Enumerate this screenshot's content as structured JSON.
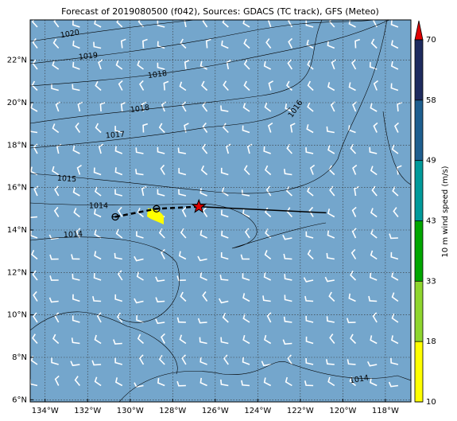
{
  "chart_data": {
    "type": "map",
    "title": "Forecast of 2019080500 (f042), Sources: GDACS (TC track), GFS (Meteo)",
    "xlim": [
      -134.7,
      -116.8
    ],
    "ylim": [
      5.9,
      23.9
    ],
    "grid": true,
    "xticks": [
      {
        "value": -134,
        "label": "134°W"
      },
      {
        "value": -132,
        "label": "132°W"
      },
      {
        "value": -130,
        "label": "130°W"
      },
      {
        "value": -128,
        "label": "128°W"
      },
      {
        "value": -126,
        "label": "126°W"
      },
      {
        "value": -124,
        "label": "124°W"
      },
      {
        "value": -122,
        "label": "122°W"
      },
      {
        "value": -120,
        "label": "120°W"
      },
      {
        "value": -118,
        "label": "118°W"
      }
    ],
    "yticks": [
      {
        "value": 6,
        "label": "6°N"
      },
      {
        "value": 8,
        "label": "8°N"
      },
      {
        "value": 10,
        "label": "10°N"
      },
      {
        "value": 12,
        "label": "12°N"
      },
      {
        "value": 14,
        "label": "14°N"
      },
      {
        "value": 16,
        "label": "16°N"
      },
      {
        "value": 18,
        "label": "18°N"
      },
      {
        "value": 20,
        "label": "20°N"
      },
      {
        "value": 22,
        "label": "22°N"
      }
    ],
    "track": {
      "x": [
        -130.7,
        -128.76,
        -126.77,
        -120.78
      ],
      "y": [
        14.62,
        15.0,
        15.1,
        14.81
      ]
    },
    "colorbar": {
      "label": "10 m wind speed (m/s)",
      "levels": [
        10,
        18,
        33,
        43,
        49,
        58,
        70
      ],
      "colors": [
        "#ffff00",
        "#8fd62e",
        "#00a600",
        "#009a9a",
        "#1f5f8f",
        "#1e2b5e"
      ],
      "extend_color": "#e00000"
    },
    "contour_labels": [
      "1020",
      "1019",
      "1018",
      "1018",
      "1017",
      "1016",
      "1015",
      "1014",
      "1014",
      "1014"
    ]
  }
}
